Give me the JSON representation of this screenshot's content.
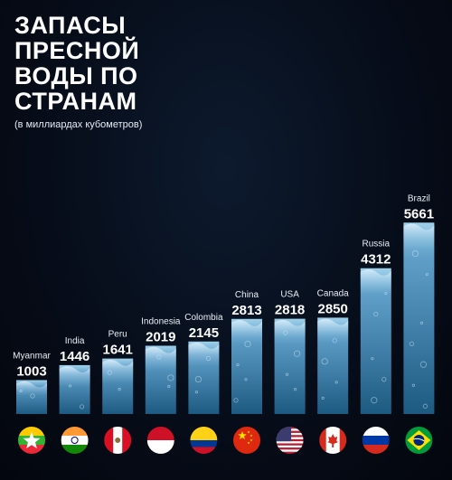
{
  "title_lines": [
    "ЗАПАСЫ",
    "ПРЕСНОЙ",
    "ВОДЫ ПО",
    "СТРАНАМ"
  ],
  "subtitle": "(в миллиардах кубометров)",
  "chart_data": {
    "type": "bar",
    "title": "ЗАПАСЫ ПРЕСНОЙ ВОДЫ ПО СТРАНАМ",
    "subtitle": "(в миллиардах кубометров)",
    "categories": [
      "Myanmar",
      "India",
      "Peru",
      "Indonesia",
      "Colombia",
      "China",
      "USA",
      "Canada",
      "Russia",
      "Brazil"
    ],
    "values": [
      1003,
      1446,
      1641,
      2019,
      2145,
      2813,
      2818,
      2850,
      4312,
      5661
    ],
    "value_labels": [
      "1003",
      "1446",
      "1641",
      "2019",
      "2145",
      "2813",
      "2818",
      "2850",
      "4312",
      "5661"
    ],
    "flag_icons": [
      "myanmar-flag-icon",
      "india-flag-icon",
      "peru-flag-icon",
      "indonesia-flag-icon",
      "colombia-flag-icon",
      "china-flag-icon",
      "usa-flag-icon",
      "canada-flag-icon",
      "russia-flag-icon",
      "brazil-flag-icon"
    ],
    "grid": false,
    "legend": "none",
    "colors": {
      "bar_top": "#8fc6e4",
      "bar_bottom": "#1f5e86",
      "background": "#060c18"
    }
  }
}
